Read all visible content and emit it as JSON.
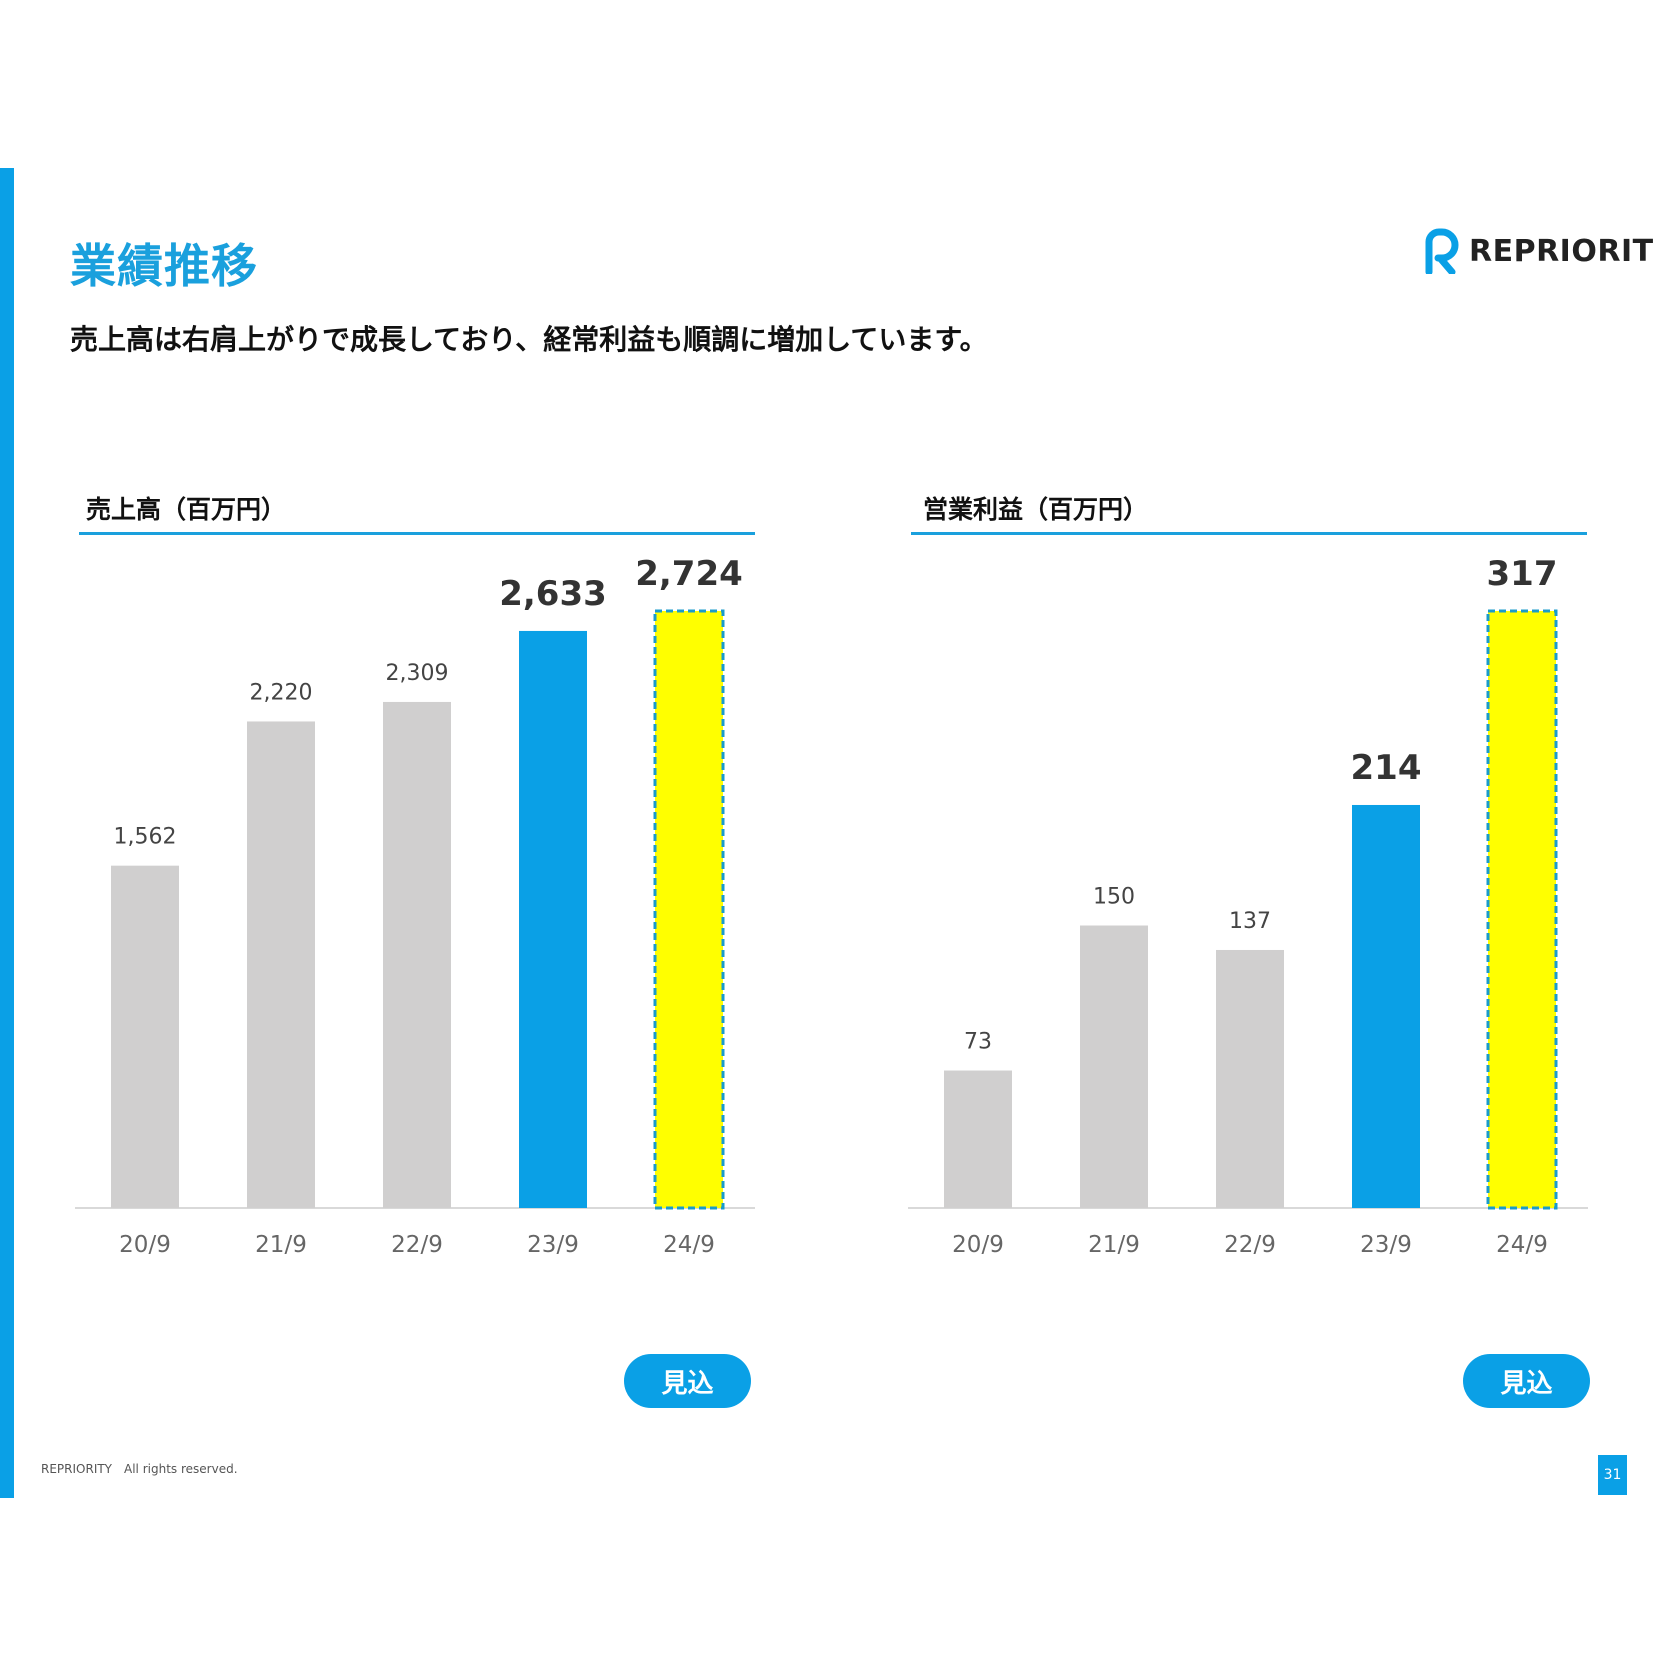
{
  "slide": {
    "title": "業績推移",
    "subtitle": "売上高は右肩上がりで成長しており、経常利益も順調に増加しています。",
    "logo_text": "REPRIORITY",
    "footer": "REPRIORITY　All rights reserved.",
    "page_number": "31",
    "forecast_badge": "見込",
    "colors": {
      "accent": "#0AA0E6",
      "past": "#D0CFCF",
      "forecast": "#FFFF00",
      "forecast_border": "#1A9BCB"
    }
  },
  "chart_data": [
    {
      "type": "bar",
      "title": "売上高（百万円）",
      "categories": [
        "20/9",
        "21/9",
        "22/9",
        "23/9",
        "24/9"
      ],
      "values": [
        1562,
        2220,
        2309,
        2633,
        2724
      ],
      "value_labels": [
        "1,562",
        "2,220",
        "2,309",
        "2,633",
        "2,724"
      ],
      "ylim": [
        0,
        2724
      ],
      "grid": false,
      "bar_styles": [
        "past",
        "past",
        "past",
        "current",
        "forecast"
      ]
    },
    {
      "type": "bar",
      "title": "営業利益（百万円）",
      "categories": [
        "20/9",
        "21/9",
        "22/9",
        "23/9",
        "24/9"
      ],
      "values": [
        73,
        150,
        137,
        214,
        317
      ],
      "value_labels": [
        "73",
        "150",
        "137",
        "214",
        "317"
      ],
      "ylim": [
        0,
        317
      ],
      "grid": false,
      "bar_styles": [
        "past",
        "past",
        "past",
        "current",
        "forecast"
      ]
    }
  ]
}
